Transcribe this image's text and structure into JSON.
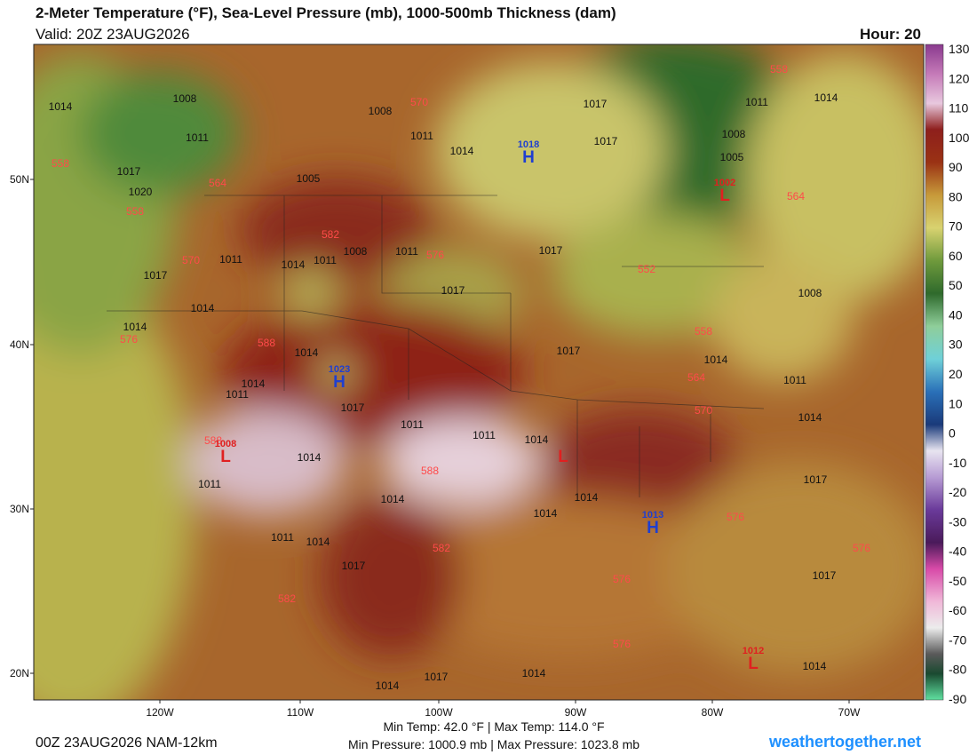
{
  "header": {
    "title": "2-Meter Temperature (°F), Sea-Level Pressure (mb), 1000-500mb Thickness (dam)",
    "valid": "Valid: 20Z 23AUG2026",
    "hour": "Hour: 20"
  },
  "map": {
    "lat_labels": [
      "50N",
      "40N",
      "30N",
      "20N"
    ],
    "lon_labels": [
      "120W",
      "110W",
      "100W",
      "90W",
      "80W",
      "70W"
    ],
    "pressure_labels": [
      "1014",
      "1008",
      "1008",
      "1011",
      "1011",
      "1014",
      "1017",
      "1017",
      "1011",
      "1014",
      "1008",
      "1005",
      "1017",
      "1020",
      "1005",
      "1011",
      "1014",
      "1011",
      "1008",
      "1011",
      "1017",
      "1017",
      "1017",
      "1014",
      "1008",
      "1014",
      "1014",
      "1011",
      "1014",
      "1017",
      "1017",
      "1014",
      "1011",
      "1014",
      "1011",
      "1011",
      "1014",
      "1014",
      "1011",
      "1014",
      "1014",
      "1014",
      "1017",
      "1011",
      "1014",
      "1017",
      "1017",
      "1014",
      "1014",
      "1014",
      "1017"
    ],
    "thickness_labels": [
      "570",
      "558",
      "564",
      "558",
      "570",
      "582",
      "576",
      "552",
      "558",
      "564",
      "570",
      "588",
      "576",
      "588",
      "588",
      "582",
      "576",
      "576",
      "576",
      "576",
      "582",
      "564",
      "558"
    ],
    "centers": [
      {
        "letter": "H",
        "value": "1018"
      },
      {
        "letter": "H",
        "value": "1023"
      },
      {
        "letter": "H",
        "value": "1013"
      },
      {
        "letter": "L",
        "value": "1002"
      },
      {
        "letter": "L",
        "value": "1008"
      },
      {
        "letter": "L",
        "value": "1012"
      },
      {
        "letter": "L"
      }
    ]
  },
  "colorbar": {
    "ticks": [
      130,
      120,
      110,
      100,
      90,
      80,
      70,
      60,
      50,
      40,
      30,
      20,
      10,
      0,
      -10,
      -20,
      -30,
      -40,
      -50,
      -60,
      -70,
      -80,
      -90
    ]
  },
  "footer": {
    "run": "00Z 23AUG2026 NAM-12km",
    "temp_range": "Min Temp:  42.0 °F | Max Temp: 114.0 °F",
    "pressure_range": "Min Pressure: 1000.9 mb | Max Pressure: 1023.8 mb",
    "site": "weathertogether.net"
  }
}
